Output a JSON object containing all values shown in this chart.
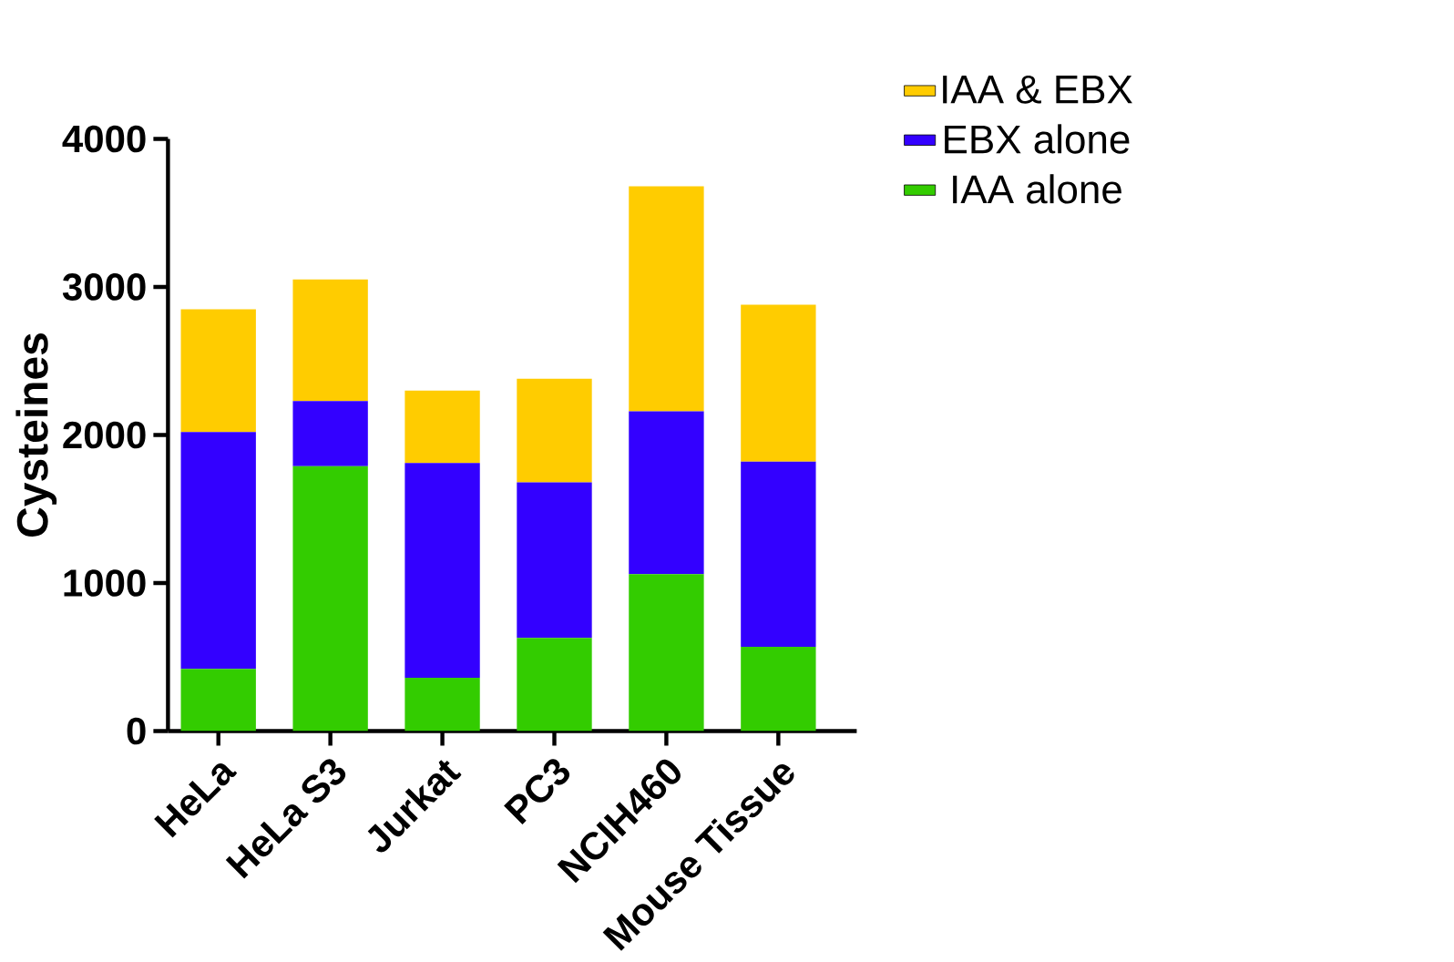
{
  "chart_data": {
    "type": "bar",
    "stacked": true,
    "ylabel": "Cysteines",
    "categories": [
      "HeLa",
      "HeLa S3",
      "Jurkat",
      "PC3",
      "NCIH460",
      "Mouse Tissue"
    ],
    "series": [
      {
        "name": "IAA alone",
        "color": "#33cc00",
        "values": [
          420,
          1790,
          360,
          630,
          1060,
          570
        ]
      },
      {
        "name": "EBX alone",
        "color": "#3300ff",
        "values": [
          1600,
          440,
          1450,
          1050,
          1100,
          1250
        ]
      },
      {
        "name": "IAA & EBX",
        "color": "#ffcc00",
        "values": [
          830,
          820,
          490,
          700,
          1520,
          1060
        ]
      }
    ],
    "ylim": [
      0,
      4000
    ],
    "yticks": [
      0,
      1000,
      2000,
      3000,
      4000
    ],
    "grid": false,
    "legend": "top right"
  }
}
